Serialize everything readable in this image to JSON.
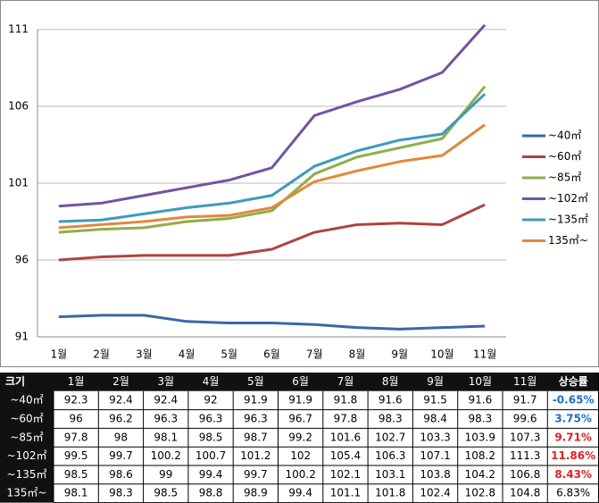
{
  "chart_data": {
    "type": "line",
    "categories": [
      "1월",
      "2월",
      "3월",
      "4월",
      "5월",
      "6월",
      "7월",
      "8월",
      "9월",
      "10월",
      "11월"
    ],
    "series": [
      {
        "name": "~40㎡",
        "color": "#3a67a8",
        "values": [
          92.3,
          92.4,
          92.4,
          92,
          91.9,
          91.9,
          91.8,
          91.6,
          91.5,
          91.6,
          91.7
        ]
      },
      {
        "name": "~60㎡",
        "color": "#b04340",
        "values": [
          96,
          96.2,
          96.3,
          96.3,
          96.3,
          96.7,
          97.8,
          98.3,
          98.4,
          98.3,
          99.6
        ]
      },
      {
        "name": "~85㎡",
        "color": "#8fae4a",
        "values": [
          97.8,
          98,
          98.1,
          98.5,
          98.7,
          99.2,
          101.6,
          102.7,
          103.3,
          103.9,
          107.3
        ]
      },
      {
        "name": "~102㎡",
        "color": "#7254a0",
        "values": [
          99.5,
          99.7,
          100.2,
          100.7,
          101.2,
          102,
          105.4,
          106.3,
          107.1,
          108.2,
          111.3
        ]
      },
      {
        "name": "~135㎡",
        "color": "#3d9bba",
        "values": [
          98.5,
          98.6,
          99,
          99.4,
          99.7,
          100.2,
          102.1,
          103.1,
          103.8,
          104.2,
          106.8
        ]
      },
      {
        "name": "135㎡~",
        "color": "#e1893b",
        "values": [
          98.1,
          98.3,
          98.5,
          98.8,
          98.9,
          99.4,
          101.1,
          101.8,
          102.4,
          102.8,
          104.8
        ]
      }
    ],
    "ylim": [
      91,
      111
    ],
    "yticks": [
      91,
      96,
      101,
      106,
      111
    ],
    "grid": true,
    "legend": "right"
  },
  "table": {
    "size_header": "크기",
    "rate_header": "상승률",
    "rates": [
      "-0.65%",
      "3.75%",
      "9.71%",
      "11.86%",
      "8.43%",
      "6.83%"
    ],
    "rate_colors": [
      "#1f6fc0",
      "#1f6fc0",
      "#e02020",
      "#e02020",
      "#e02020",
      "#000000"
    ]
  }
}
